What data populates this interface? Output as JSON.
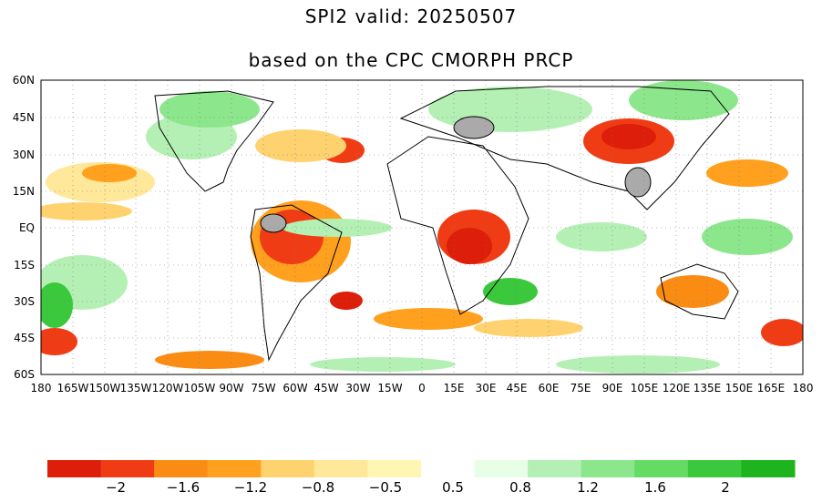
{
  "title_line1": "SPI2   valid: 20250507",
  "title_line2": "based on the CPC CMORPH PRCP",
  "lat_labels": [
    "60N",
    "45N",
    "30N",
    "15N",
    "EQ",
    "15S",
    "30S",
    "45S",
    "60S"
  ],
  "lon_labels": [
    "180",
    "165W",
    "150W",
    "135W",
    "120W",
    "105W",
    "90W",
    "75W",
    "60W",
    "45W",
    "30W",
    "15W",
    "0",
    "15E",
    "30E",
    "45E",
    "60E",
    "75E",
    "90E",
    "105E",
    "120E",
    "135E",
    "150E",
    "165E",
    "180"
  ],
  "colorbar": {
    "colors": [
      "#dc1e0a",
      "#f03c14",
      "#fa8c14",
      "#ffa01e",
      "#ffd270",
      "#ffe89a",
      "#fff6b4",
      "#ffffff",
      "#e6ffe6",
      "#b4f0b4",
      "#8ce68c",
      "#64dc64",
      "#3cc83c",
      "#1eb41e"
    ],
    "labels": [
      "−2",
      "−1.6",
      "−1.2",
      "−0.8",
      "−0.5",
      "0.5",
      "0.8",
      "1.2",
      "1.6",
      "2"
    ]
  }
}
